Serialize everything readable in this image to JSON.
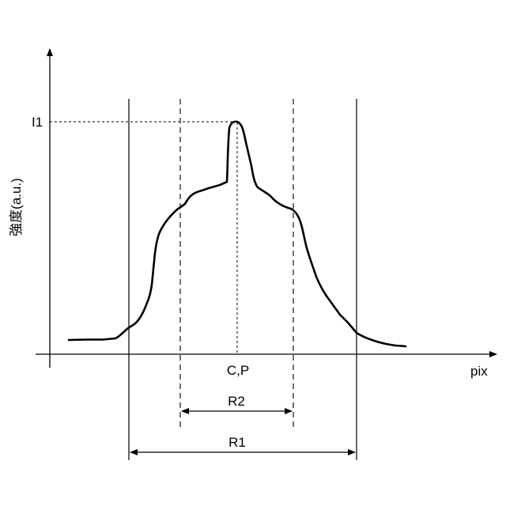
{
  "labels": {
    "y_axis": "強度(a.u.)",
    "x_axis": "pix",
    "peak_level": "I1",
    "center": "C,P",
    "r2": "R2",
    "r1": "R1"
  },
  "colors": {
    "stroke": "#000000",
    "background": "#ffffff"
  }
}
